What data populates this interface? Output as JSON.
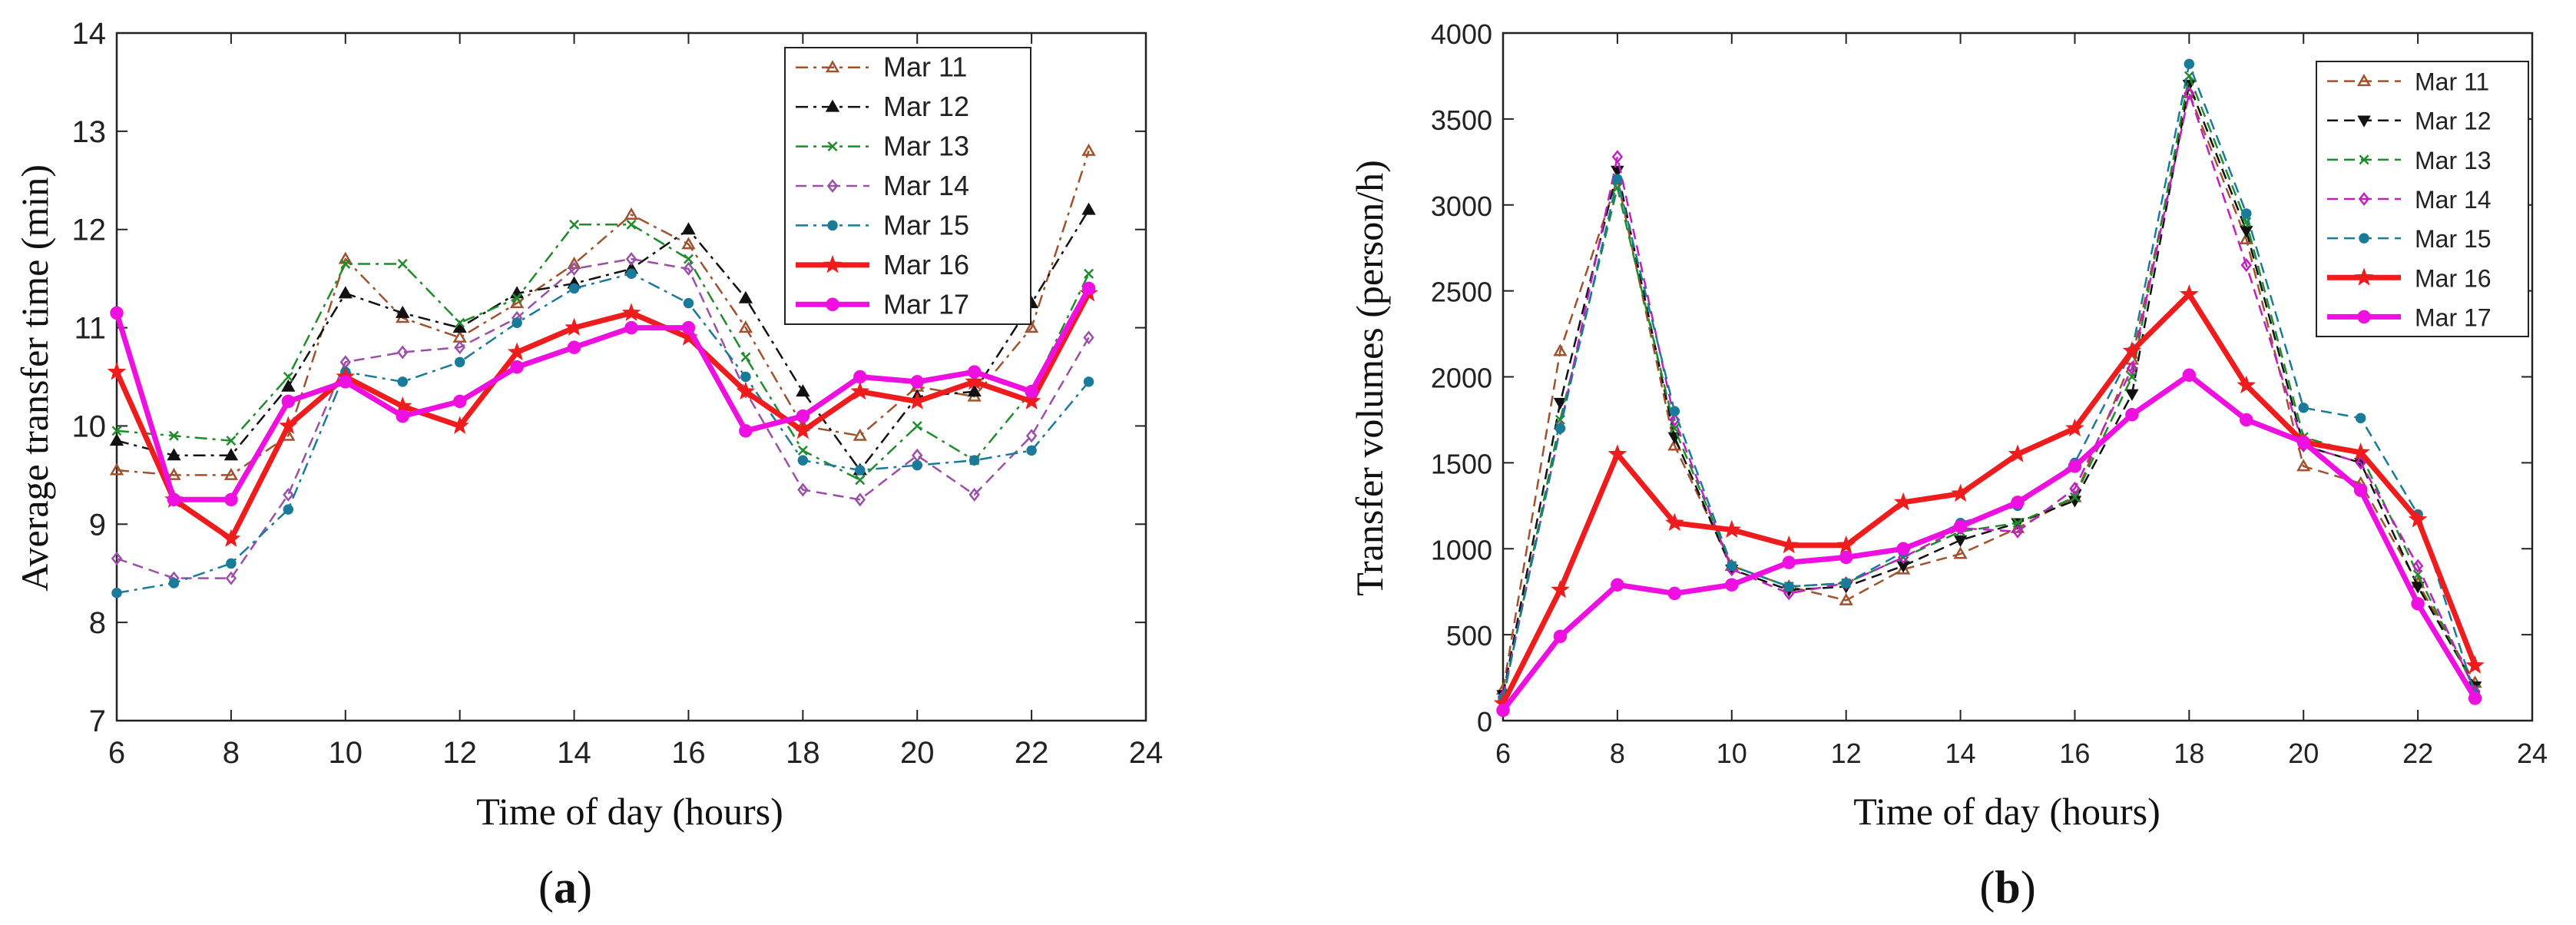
{
  "chart_data": [
    {
      "panel_label": "(a)",
      "panel_letter": "a",
      "type": "line",
      "xlabel": "Time of day (hours)",
      "ylabel": "Average transfer time (min)",
      "xlim": [
        6,
        24
      ],
      "ylim": [
        7,
        14
      ],
      "xticks": [
        6,
        8,
        10,
        12,
        14,
        16,
        18,
        20,
        22,
        24
      ],
      "yticks": [
        7,
        8,
        9,
        10,
        11,
        12,
        13,
        14
      ],
      "x": [
        6,
        7,
        8,
        9,
        10,
        11,
        12,
        13,
        14,
        15,
        16,
        17,
        18,
        19,
        20,
        21,
        22,
        23
      ],
      "legend_position": "top-right",
      "series": [
        {
          "name": "Mar 11",
          "color": "#a0522d",
          "dash": "dashdot",
          "marker": "triangle",
          "width": 2.5,
          "values": [
            9.55,
            9.5,
            9.5,
            9.9,
            11.7,
            11.1,
            10.9,
            11.25,
            11.65,
            12.15,
            11.85,
            11.0,
            10.0,
            9.9,
            10.4,
            10.3,
            11.0,
            12.8
          ]
        },
        {
          "name": "Mar 12",
          "color": "#111111",
          "dash": "dashdot",
          "marker": "triangle",
          "width": 2.5,
          "values": [
            9.85,
            9.7,
            9.7,
            10.4,
            11.35,
            11.15,
            11.0,
            11.35,
            11.45,
            11.6,
            12.0,
            11.3,
            10.35,
            9.55,
            10.3,
            10.35,
            11.25,
            12.2
          ]
        },
        {
          "name": "Mar 13",
          "color": "#1e8c2a",
          "dash": "dashdot",
          "marker": "x",
          "width": 2.5,
          "values": [
            9.95,
            9.9,
            9.85,
            10.5,
            11.65,
            11.65,
            11.05,
            11.3,
            12.05,
            12.05,
            11.7,
            10.7,
            9.75,
            9.45,
            10.0,
            9.65,
            10.35,
            11.55
          ]
        },
        {
          "name": "Mar 14",
          "color": "#9b4fa8",
          "dash": "dash",
          "marker": "diamond",
          "width": 2.5,
          "values": [
            8.65,
            8.45,
            8.45,
            9.3,
            10.65,
            10.75,
            10.8,
            11.1,
            11.6,
            11.7,
            11.6,
            10.35,
            9.35,
            9.25,
            9.7,
            9.3,
            9.9,
            10.9
          ]
        },
        {
          "name": "Mar 15",
          "color": "#1a7a9a",
          "dash": "dashdot",
          "marker": "dot",
          "width": 2.5,
          "values": [
            8.3,
            8.4,
            8.6,
            9.15,
            10.55,
            10.45,
            10.65,
            11.05,
            11.4,
            11.55,
            11.25,
            10.5,
            9.65,
            9.55,
            9.6,
            9.65,
            9.75,
            10.45
          ]
        },
        {
          "name": "Mar 16",
          "color": "#ee1c1c",
          "dash": "solid",
          "marker": "star",
          "width": 7,
          "values": [
            10.55,
            9.25,
            8.85,
            10.0,
            10.5,
            10.2,
            10.0,
            10.75,
            11.0,
            11.15,
            10.9,
            10.35,
            9.95,
            10.35,
            10.25,
            10.45,
            10.25,
            11.35
          ]
        },
        {
          "name": "Mar 17",
          "color": "#ee10e0",
          "dash": "solid",
          "marker": "dot",
          "width": 7,
          "values": [
            11.15,
            9.25,
            9.25,
            10.25,
            10.45,
            10.1,
            10.25,
            10.6,
            10.8,
            11.0,
            11.0,
            9.95,
            10.1,
            10.5,
            10.45,
            10.55,
            10.35,
            11.4
          ]
        }
      ]
    },
    {
      "panel_label": "(b)",
      "panel_letter": "b",
      "type": "line",
      "xlabel": "Time of day (hours)",
      "ylabel": "Transfer volumes (person/h)",
      "xlim": [
        6,
        24
      ],
      "ylim": [
        0,
        4000
      ],
      "xticks": [
        6,
        8,
        10,
        12,
        14,
        16,
        18,
        20,
        22,
        24
      ],
      "yticks": [
        0,
        500,
        1000,
        1500,
        2000,
        2500,
        3000,
        3500,
        4000
      ],
      "x": [
        6,
        7,
        8,
        9,
        10,
        11,
        12,
        13,
        14,
        15,
        16,
        17,
        18,
        19,
        20,
        21,
        22,
        23
      ],
      "legend_position": "top-right",
      "series": [
        {
          "name": "Mar 11",
          "color": "#a0522d",
          "dash": "dash",
          "marker": "triangle",
          "width": 2.5,
          "values": [
            180,
            2150,
            3150,
            1600,
            900,
            780,
            700,
            880,
            970,
            1120,
            1300,
            2100,
            3650,
            2800,
            1480,
            1380,
            800,
            220
          ]
        },
        {
          "name": "Mar 12",
          "color": "#111111",
          "dash": "dash",
          "marker": "triangle-down",
          "width": 2.5,
          "values": [
            150,
            1850,
            3200,
            1650,
            880,
            760,
            780,
            900,
            1050,
            1150,
            1280,
            1900,
            3700,
            2850,
            1600,
            1500,
            780,
            200
          ]
        },
        {
          "name": "Mar 13",
          "color": "#1e8c2a",
          "dash": "dash",
          "marker": "x",
          "width": 2.5,
          "values": [
            120,
            1750,
            3100,
            1700,
            900,
            780,
            800,
            950,
            1100,
            1150,
            1300,
            2000,
            3750,
            2900,
            1650,
            1550,
            850,
            180
          ]
        },
        {
          "name": "Mar 14",
          "color": "#c020c0",
          "dash": "dash",
          "marker": "diamond",
          "width": 2.5,
          "values": [
            140,
            1700,
            3280,
            1750,
            880,
            740,
            800,
            950,
            1120,
            1100,
            1350,
            2050,
            3650,
            2650,
            1600,
            1500,
            900,
            170
          ]
        },
        {
          "name": "Mar 15",
          "color": "#1a7a9a",
          "dash": "dash",
          "marker": "dot",
          "width": 2.5,
          "values": [
            130,
            1700,
            3150,
            1800,
            900,
            780,
            800,
            980,
            1150,
            1250,
            1500,
            2150,
            3820,
            2950,
            1820,
            1760,
            1200,
            150
          ]
        },
        {
          "name": "Mar 16",
          "color": "#ee1c1c",
          "dash": "solid",
          "marker": "star",
          "width": 7,
          "values": [
            100,
            760,
            1550,
            1150,
            1110,
            1020,
            1020,
            1270,
            1320,
            1550,
            1700,
            2150,
            2480,
            1950,
            1620,
            1560,
            1170,
            320
          ]
        },
        {
          "name": "Mar 17",
          "color": "#ee10e0",
          "dash": "solid",
          "marker": "dot",
          "width": 7,
          "values": [
            60,
            490,
            790,
            740,
            790,
            920,
            950,
            1000,
            1130,
            1270,
            1480,
            1780,
            2010,
            1750,
            1620,
            1340,
            680,
            130
          ]
        }
      ]
    }
  ]
}
